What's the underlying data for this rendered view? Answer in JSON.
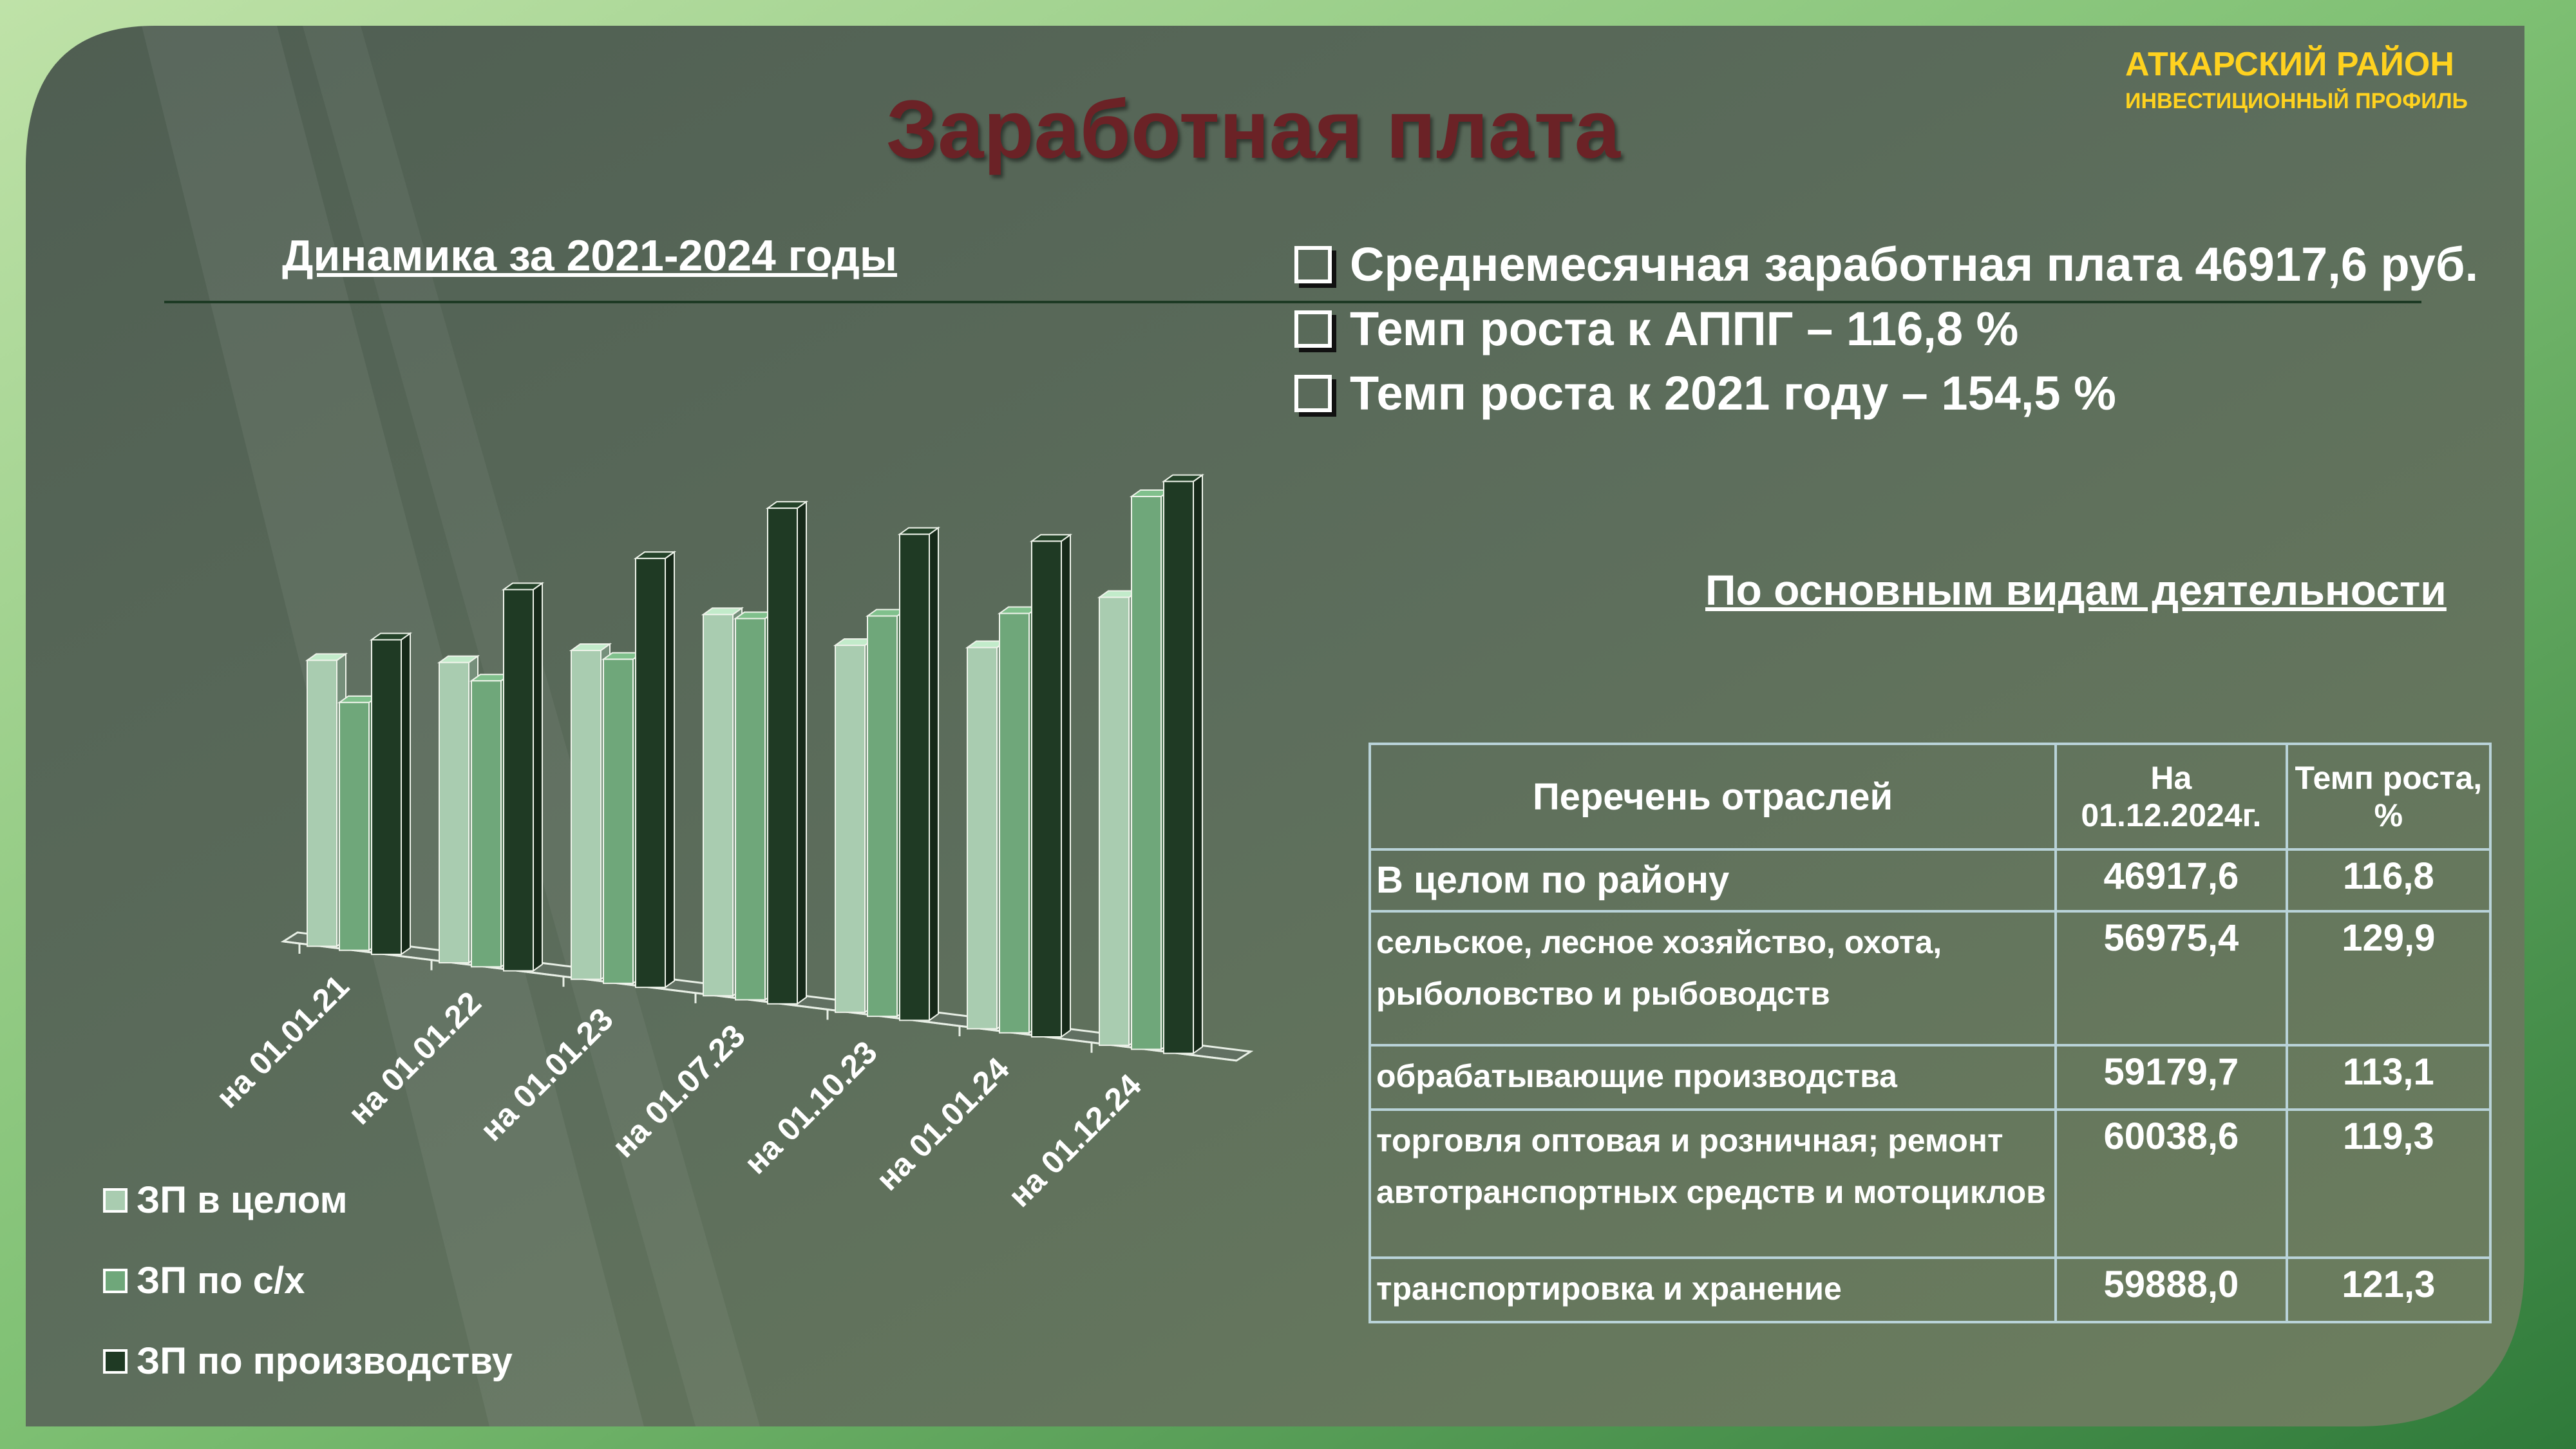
{
  "header": {
    "title": "Заработная плата",
    "brand_line1": "АТКАРСКИЙ РАЙОН",
    "brand_line2": "ИНВЕСТИЦИОННЫЙ ПРОФИЛЬ"
  },
  "chart_section": {
    "subtitle": "Динамика за 2021-2024 годы"
  },
  "summary": {
    "bullets": [
      "Среднемесячная заработная плата 46917,6 руб.",
      "Темп роста к АППГ – 116,8 %",
      "Темп роста к 2021 году – 154,5 %"
    ]
  },
  "table_section": {
    "title": "По основным видам деятельности",
    "headers": [
      "Перечень отраслей",
      "На 01.12.2024г.",
      "Темп роста, %"
    ],
    "rows": [
      {
        "name": "В целом по району",
        "value": "46917,6",
        "growth": "116,8"
      },
      {
        "name": "сельское, лесное хозяйство, охота, рыболовство и рыбоводств",
        "value": "56975,4",
        "growth": "129,9"
      },
      {
        "name": "обрабатывающие производства",
        "value": "59179,7",
        "growth": "113,1"
      },
      {
        "name": "торговля оптовая и розничная; ремонт автотранспортных средств и мотоциклов",
        "value": "60038,6",
        "growth": "119,3"
      },
      {
        "name": "транспортировка и хранение",
        "value": "59888,0",
        "growth": "121,3"
      }
    ]
  },
  "chart_data": {
    "type": "bar",
    "categories": [
      "на 01.01.21",
      "на 01.01.22",
      "на 01.01.23",
      "на 01.07.23",
      "на 01.10.23",
      "на 01.01.24",
      "на 01.12.24"
    ],
    "series": [
      {
        "name": "ЗП в целом",
        "color": "#a9ccb0",
        "values": [
          30000,
          31500,
          34500,
          40000,
          38500,
          40000,
          47000
        ]
      },
      {
        "name": "ЗП по с/х",
        "color": "#6fa77a",
        "values": [
          26000,
          30000,
          34000,
          40000,
          42000,
          44000,
          58000
        ]
      },
      {
        "name": "ЗП по производству",
        "color": "#1f3a24",
        "values": [
          33000,
          40000,
          45000,
          52000,
          51000,
          52000,
          60000
        ]
      }
    ],
    "legend_position": "bottom-left",
    "grid": false
  }
}
